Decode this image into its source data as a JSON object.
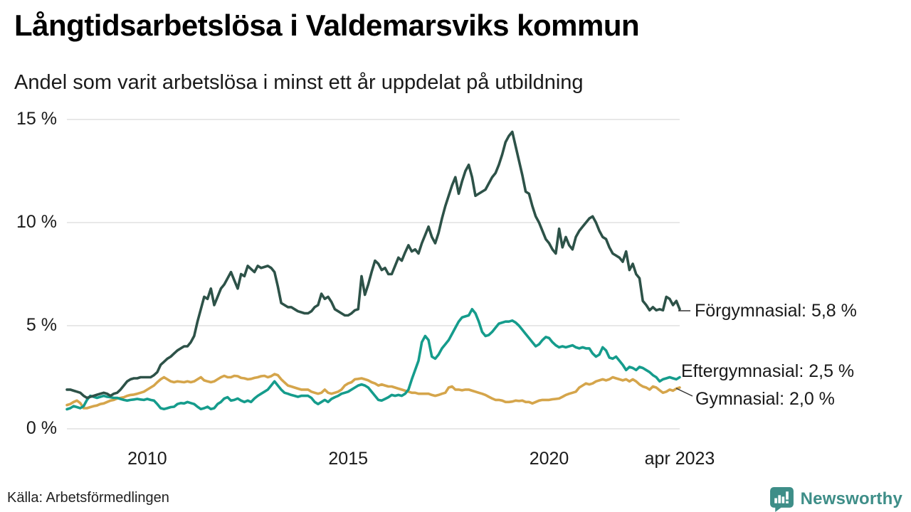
{
  "header": {
    "title": "Långtidsarbetslösa i Valdemarsviks kommun",
    "subtitle": "Andel som varit arbetslösa i minst ett år uppdelat på utbildning"
  },
  "footer": {
    "source": "Källa: Arbetsförmedlingen",
    "logo_text": "Newsworthy"
  },
  "theme": {
    "grid_color": "#e1e1e1",
    "connector_color": "#333333",
    "logo_color": "#3e8e88"
  },
  "chart_data": {
    "type": "line",
    "title": "Långtidsarbetslösa i Valdemarsviks kommun",
    "subtitle": "Andel som varit arbetslösa i minst ett år uppdelat på utbildning",
    "x_unit": "month",
    "x_start": "2008-01",
    "x_end": "2023-04",
    "ylim": [
      0,
      15
    ],
    "grid": "horizontal",
    "legend_position": "right-end-labels",
    "yticks": [
      {
        "value": 15,
        "label": "15 %"
      },
      {
        "value": 10,
        "label": "10 %"
      },
      {
        "value": 5,
        "label": "5 %"
      },
      {
        "value": 0,
        "label": "0 %"
      }
    ],
    "xticks": [
      {
        "index": 24,
        "label": "2010"
      },
      {
        "index": 84,
        "label": "2015"
      },
      {
        "index": 144,
        "label": "2020"
      },
      {
        "index": 183,
        "label": "apr 2023"
      }
    ],
    "series": [
      {
        "name": "Gymnasial",
        "end_label": "Gymnasial: 2,0 %",
        "end_value": "2,0 %",
        "color": "#d5a54b",
        "values": [
          1.15,
          1.2,
          1.3,
          1.37,
          1.25,
          1.0,
          1.0,
          1.05,
          1.1,
          1.13,
          1.2,
          1.23,
          1.3,
          1.37,
          1.4,
          1.47,
          1.5,
          1.53,
          1.6,
          1.64,
          1.66,
          1.7,
          1.75,
          1.8,
          1.9,
          2.0,
          2.1,
          2.26,
          2.4,
          2.5,
          2.4,
          2.3,
          2.26,
          2.3,
          2.28,
          2.26,
          2.3,
          2.26,
          2.3,
          2.4,
          2.5,
          2.35,
          2.3,
          2.26,
          2.3,
          2.4,
          2.5,
          2.57,
          2.5,
          2.5,
          2.57,
          2.55,
          2.47,
          2.45,
          2.4,
          2.42,
          2.47,
          2.5,
          2.55,
          2.57,
          2.5,
          2.55,
          2.65,
          2.6,
          2.4,
          2.25,
          2.1,
          2.05,
          2.0,
          1.95,
          1.9,
          1.9,
          1.9,
          1.8,
          1.75,
          1.7,
          1.75,
          1.9,
          1.75,
          1.7,
          1.75,
          1.8,
          1.9,
          2.1,
          2.2,
          2.26,
          2.4,
          2.42,
          2.45,
          2.4,
          2.35,
          2.26,
          2.2,
          2.1,
          2.15,
          2.1,
          2.05,
          2.05,
          2.0,
          1.95,
          1.9,
          1.85,
          1.8,
          1.75,
          1.75,
          1.7,
          1.7,
          1.7,
          1.7,
          1.64,
          1.6,
          1.64,
          1.7,
          1.75,
          2.0,
          2.05,
          1.9,
          1.9,
          1.87,
          1.9,
          1.9,
          1.85,
          1.8,
          1.75,
          1.7,
          1.64,
          1.55,
          1.47,
          1.4,
          1.4,
          1.37,
          1.3,
          1.3,
          1.32,
          1.37,
          1.35,
          1.37,
          1.3,
          1.3,
          1.23,
          1.3,
          1.37,
          1.4,
          1.4,
          1.4,
          1.43,
          1.45,
          1.47,
          1.55,
          1.64,
          1.7,
          1.75,
          1.8,
          2.0,
          2.1,
          2.2,
          2.15,
          2.2,
          2.3,
          2.35,
          2.4,
          2.35,
          2.4,
          2.5,
          2.45,
          2.4,
          2.35,
          2.4,
          2.3,
          2.4,
          2.3,
          2.15,
          2.05,
          2.0,
          1.9,
          2.05,
          2.0,
          1.87,
          1.75,
          1.8,
          1.9,
          1.85,
          1.95,
          2.0
        ]
      },
      {
        "name": "Eftergymnasial",
        "end_label": "Eftergymnasial: 2,5 %",
        "end_value": "2,5 %",
        "color": "#159c8c",
        "values": [
          0.95,
          1.0,
          1.1,
          1.05,
          1.0,
          1.1,
          1.4,
          1.6,
          1.55,
          1.5,
          1.55,
          1.6,
          1.55,
          1.53,
          1.5,
          1.5,
          1.45,
          1.4,
          1.37,
          1.4,
          1.42,
          1.45,
          1.42,
          1.4,
          1.45,
          1.4,
          1.37,
          1.2,
          1.0,
          0.96,
          1.0,
          1.05,
          1.07,
          1.2,
          1.25,
          1.23,
          1.3,
          1.25,
          1.2,
          1.07,
          0.96,
          1.0,
          1.07,
          0.96,
          1.0,
          1.2,
          1.3,
          1.47,
          1.53,
          1.37,
          1.4,
          1.47,
          1.37,
          1.3,
          1.37,
          1.3,
          1.47,
          1.6,
          1.7,
          1.8,
          1.9,
          2.1,
          2.3,
          2.1,
          1.9,
          1.75,
          1.7,
          1.64,
          1.6,
          1.55,
          1.6,
          1.6,
          1.6,
          1.5,
          1.3,
          1.2,
          1.3,
          1.4,
          1.3,
          1.45,
          1.53,
          1.6,
          1.7,
          1.75,
          1.8,
          1.9,
          2.0,
          2.1,
          2.15,
          2.1,
          2.0,
          1.8,
          1.6,
          1.4,
          1.37,
          1.45,
          1.53,
          1.64,
          1.6,
          1.64,
          1.6,
          1.7,
          1.9,
          2.4,
          2.85,
          3.3,
          4.2,
          4.5,
          4.3,
          3.5,
          3.4,
          3.6,
          3.9,
          4.1,
          4.3,
          4.6,
          4.9,
          5.2,
          5.4,
          5.45,
          5.5,
          5.8,
          5.6,
          5.2,
          4.7,
          4.5,
          4.55,
          4.7,
          4.9,
          5.1,
          5.15,
          5.2,
          5.2,
          5.25,
          5.15,
          5.0,
          4.8,
          4.6,
          4.4,
          4.2,
          4.0,
          4.1,
          4.3,
          4.45,
          4.4,
          4.2,
          4.05,
          3.95,
          4.0,
          3.95,
          4.0,
          4.05,
          3.95,
          3.9,
          3.95,
          3.9,
          3.9,
          3.65,
          3.5,
          3.6,
          3.95,
          3.8,
          3.45,
          3.4,
          3.5,
          3.3,
          3.1,
          2.85,
          3.0,
          2.95,
          2.85,
          3.0,
          2.95,
          2.85,
          2.75,
          2.6,
          2.5,
          2.3,
          2.4,
          2.45,
          2.5,
          2.45,
          2.4,
          2.5
        ]
      },
      {
        "name": "Förgymnasial",
        "end_label": "Förgymnasial: 5,8 %",
        "end_value": "5,8 %",
        "color": "#2d5248",
        "values": [
          1.9,
          1.9,
          1.85,
          1.8,
          1.75,
          1.6,
          1.5,
          1.55,
          1.6,
          1.65,
          1.7,
          1.75,
          1.7,
          1.6,
          1.7,
          1.75,
          1.9,
          2.1,
          2.3,
          2.4,
          2.45,
          2.45,
          2.5,
          2.5,
          2.5,
          2.5,
          2.6,
          2.75,
          3.1,
          3.25,
          3.4,
          3.5,
          3.65,
          3.8,
          3.9,
          4.0,
          4.0,
          4.2,
          4.5,
          5.2,
          5.8,
          6.4,
          6.3,
          6.8,
          6.0,
          6.4,
          6.8,
          7.0,
          7.3,
          7.6,
          7.2,
          6.8,
          7.5,
          7.4,
          7.9,
          7.75,
          7.6,
          7.9,
          7.8,
          7.85,
          7.9,
          7.8,
          7.6,
          6.9,
          6.1,
          6.0,
          5.9,
          5.9,
          5.8,
          5.7,
          5.65,
          5.6,
          5.6,
          5.7,
          5.9,
          6.0,
          6.55,
          6.3,
          6.4,
          6.15,
          5.8,
          5.7,
          5.6,
          5.5,
          5.5,
          5.6,
          5.75,
          5.8,
          7.4,
          6.5,
          7.0,
          7.6,
          8.15,
          8.0,
          7.7,
          7.8,
          7.5,
          7.5,
          7.9,
          8.3,
          8.15,
          8.55,
          8.9,
          8.6,
          8.7,
          8.5,
          9.0,
          9.4,
          9.8,
          9.3,
          9.0,
          9.5,
          10.2,
          10.8,
          11.3,
          11.8,
          12.2,
          11.4,
          12.0,
          12.5,
          12.8,
          12.2,
          11.3,
          11.4,
          11.5,
          11.6,
          11.9,
          12.2,
          12.4,
          12.8,
          13.3,
          13.9,
          14.2,
          14.4,
          13.7,
          13.0,
          12.3,
          11.5,
          11.4,
          10.8,
          10.3,
          10.0,
          9.6,
          9.2,
          9.0,
          8.7,
          8.5,
          9.7,
          8.8,
          9.3,
          8.9,
          8.7,
          9.3,
          9.6,
          9.8,
          10.0,
          10.2,
          10.3,
          10.0,
          9.6,
          9.3,
          9.2,
          8.8,
          8.5,
          8.4,
          8.3,
          8.1,
          8.6,
          7.7,
          8.0,
          7.5,
          7.3,
          6.2,
          6.0,
          5.75,
          5.9,
          5.75,
          5.8,
          5.75,
          6.4,
          6.3,
          6.0,
          6.2,
          5.8
        ]
      }
    ]
  }
}
